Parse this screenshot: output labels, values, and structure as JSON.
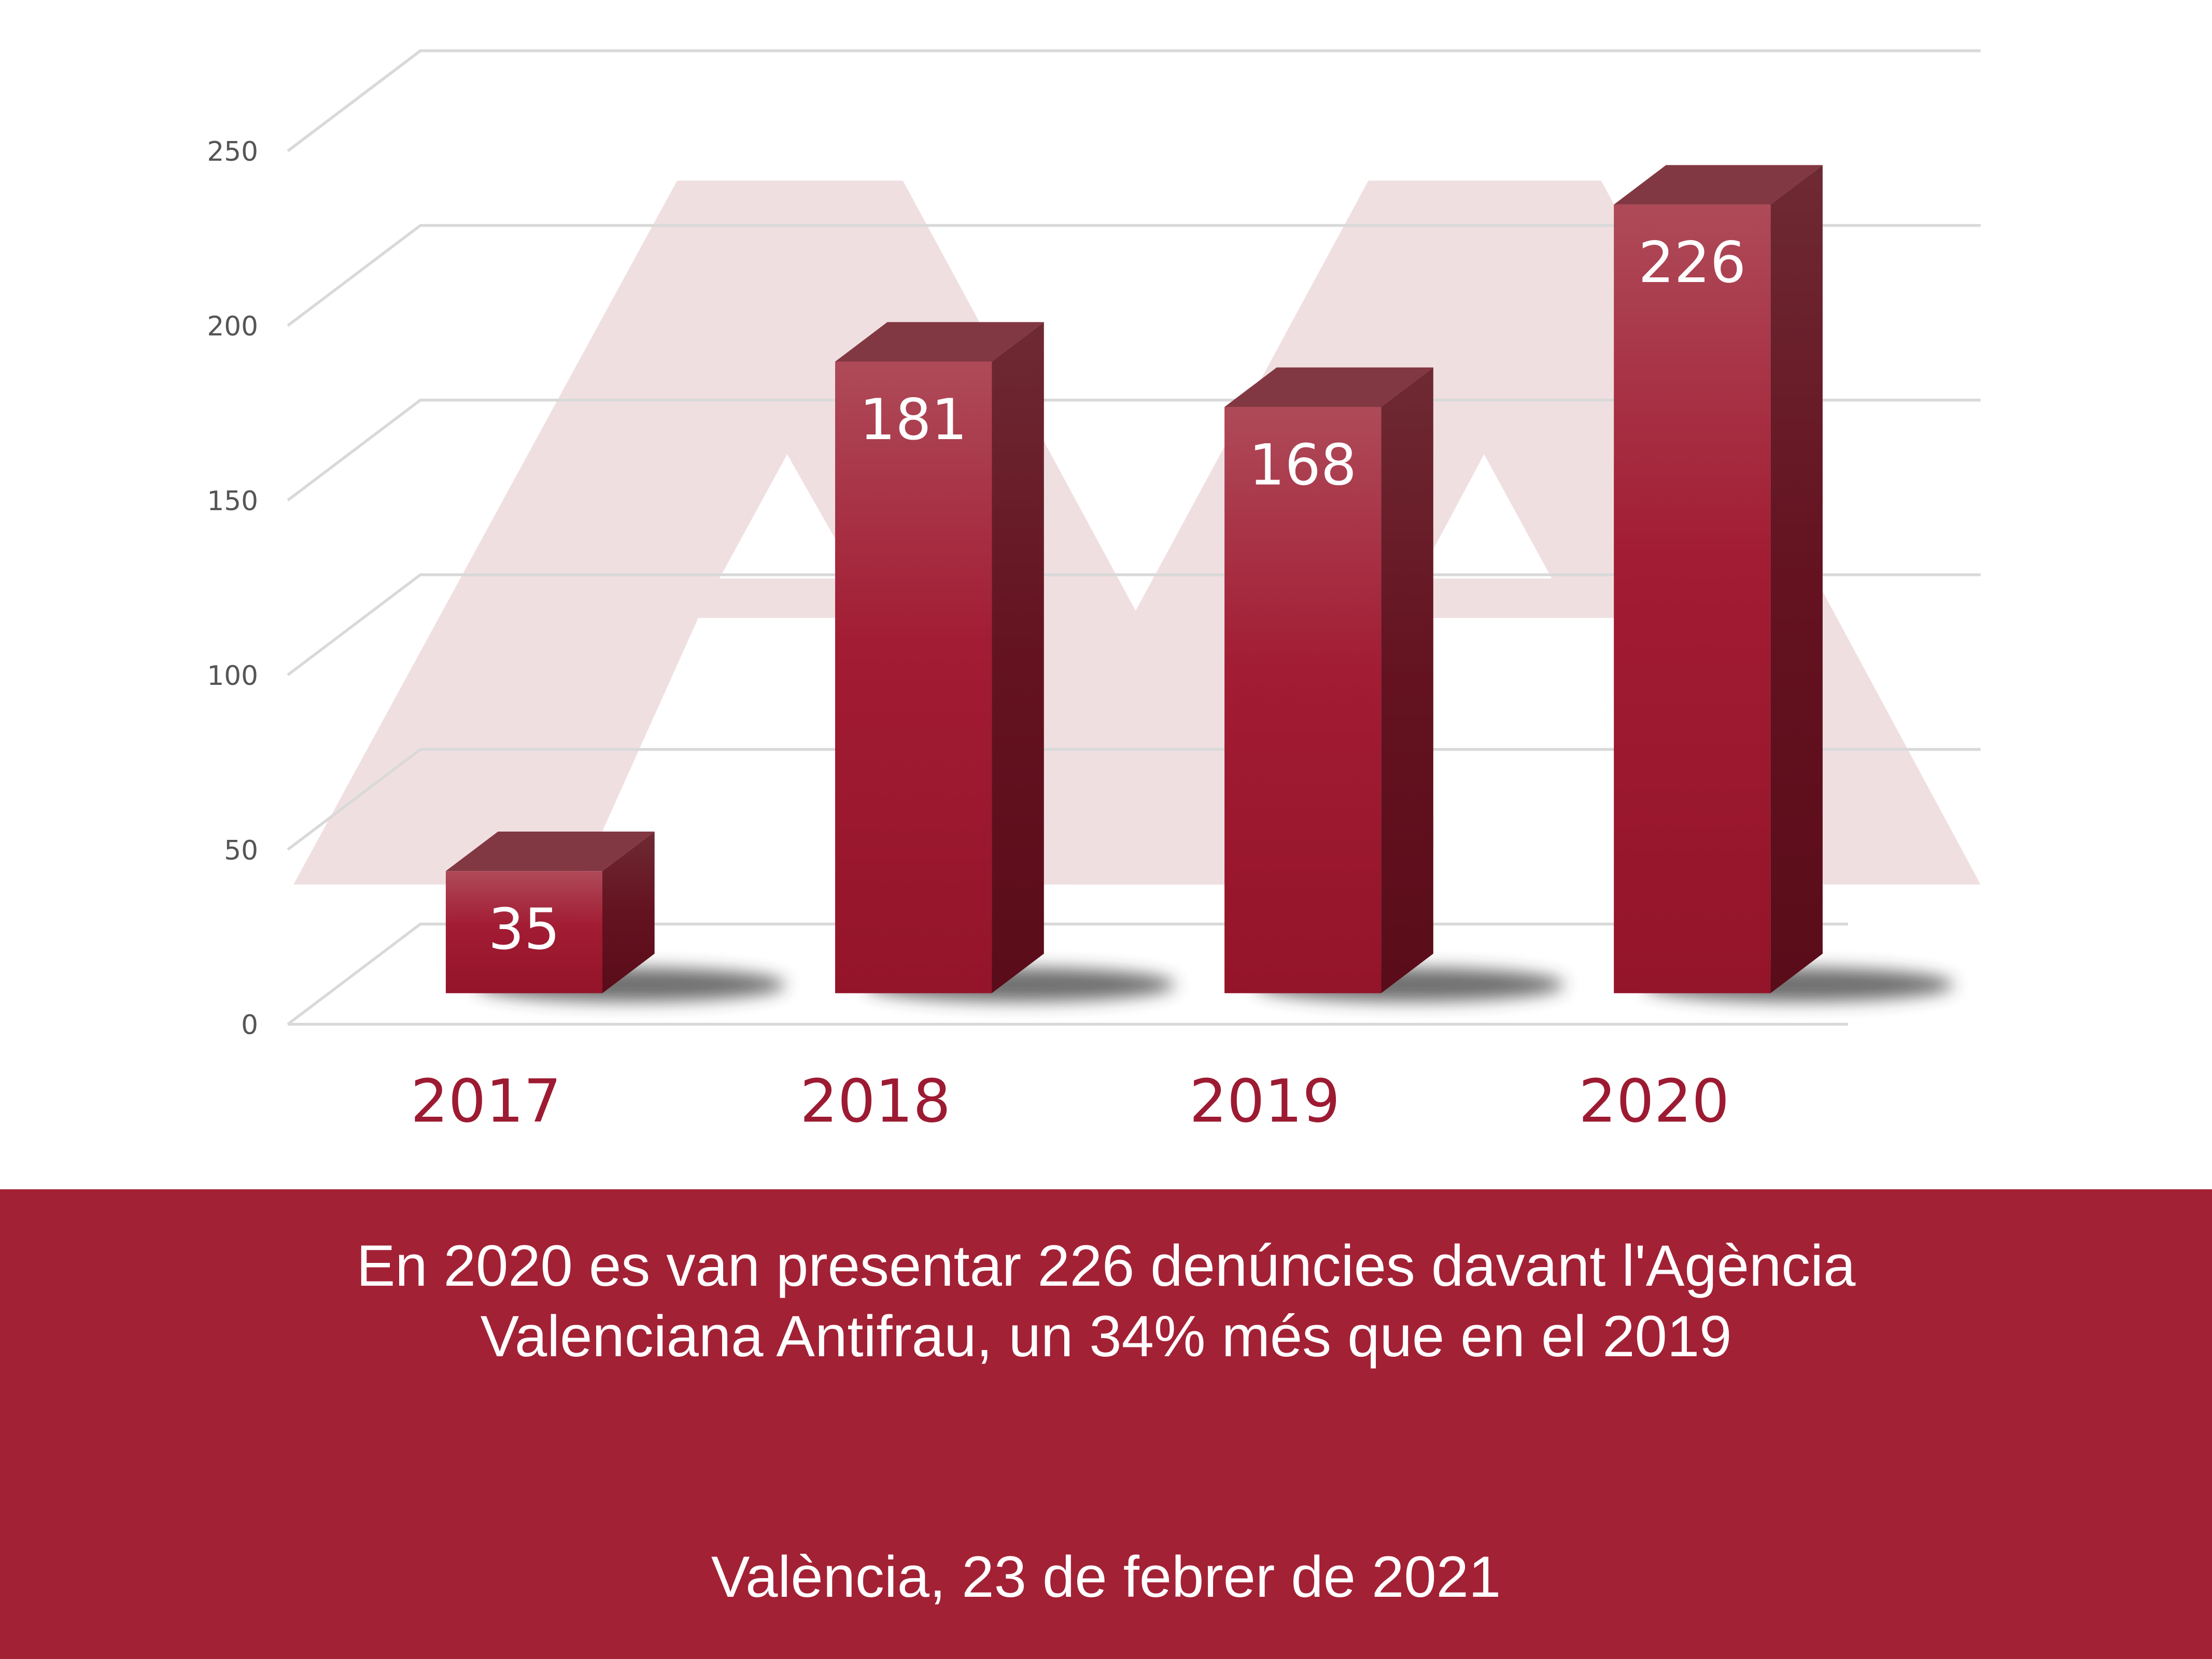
{
  "chart_data": {
    "type": "bar",
    "categories": [
      "2017",
      "2018",
      "2019",
      "2020"
    ],
    "values": [
      35,
      181,
      168,
      226
    ],
    "ylim": [
      0,
      250
    ],
    "yticks": [
      "0",
      "50",
      "100",
      "150",
      "200",
      "250"
    ],
    "grid": true,
    "style": "3d",
    "colors": {
      "bar": "#a01c31",
      "year_label": "#9c1b32",
      "watermark": "#f0dfe1"
    }
  },
  "banner": {
    "headline_line1": "En 2020 es van presentar 226 denúncies davant l'Agència",
    "headline_line2": "Valenciana Antifrau, un 34% més que en el 2019",
    "date": "València, 23 de febrer de 2021",
    "color": "#a32135"
  }
}
